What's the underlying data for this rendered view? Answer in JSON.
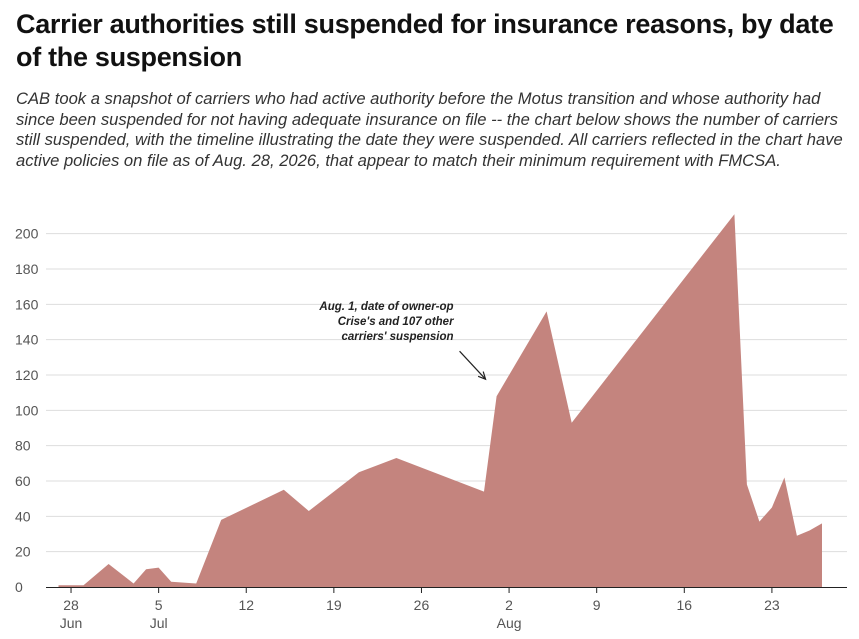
{
  "chart_data": {
    "type": "area",
    "title": "Carrier authorities still suspended for insurance reasons, by date of the suspension",
    "subtitle": "CAB took a snapshot of carriers who had active authority before the Motus transition and whose authority had since been suspended for not having adequate insurance on file -- the chart below shows the number of carriers still suspended, with the timeline illustrating the date they were suspended. All carriers reflected in the chart have active policies on file as of Aug. 28, 2026, that appear to match their minimum requirement with FMCSA.",
    "xlabel": "",
    "ylabel": "",
    "ylim": [
      0,
      210
    ],
    "yticks": [
      0,
      20,
      40,
      60,
      80,
      100,
      120,
      140,
      160,
      180,
      200
    ],
    "xlim": [
      "2026-06-26",
      "2026-08-29"
    ],
    "xticks": [
      {
        "date": "2026-06-28",
        "day": "28",
        "month": "Jun"
      },
      {
        "date": "2026-07-05",
        "day": "5",
        "month": "Jul"
      },
      {
        "date": "2026-07-12",
        "day": "12",
        "month": ""
      },
      {
        "date": "2026-07-19",
        "day": "19",
        "month": ""
      },
      {
        "date": "2026-07-26",
        "day": "26",
        "month": ""
      },
      {
        "date": "2026-08-02",
        "day": "2",
        "month": "Aug"
      },
      {
        "date": "2026-08-09",
        "day": "9",
        "month": ""
      },
      {
        "date": "2026-08-16",
        "day": "16",
        "month": ""
      },
      {
        "date": "2026-08-23",
        "day": "23",
        "month": ""
      }
    ],
    "grid": true,
    "color": "#c4847e",
    "series": [
      {
        "name": "",
        "points": [
          {
            "x": "2026-06-27",
            "y": 1
          },
          {
            "x": "2026-06-29",
            "y": 1
          },
          {
            "x": "2026-07-01",
            "y": 13
          },
          {
            "x": "2026-07-03",
            "y": 2
          },
          {
            "x": "2026-07-04",
            "y": 10
          },
          {
            "x": "2026-07-05",
            "y": 11
          },
          {
            "x": "2026-07-06",
            "y": 3
          },
          {
            "x": "2026-07-08",
            "y": 2
          },
          {
            "x": "2026-07-10",
            "y": 38
          },
          {
            "x": "2026-07-15",
            "y": 55
          },
          {
            "x": "2026-07-17",
            "y": 43
          },
          {
            "x": "2026-07-21",
            "y": 65
          },
          {
            "x": "2026-07-24",
            "y": 73
          },
          {
            "x": "2026-07-31",
            "y": 54
          },
          {
            "x": "2026-08-01",
            "y": 108
          },
          {
            "x": "2026-08-05",
            "y": 156
          },
          {
            "x": "2026-08-07",
            "y": 93
          },
          {
            "x": "2026-08-20",
            "y": 211
          },
          {
            "x": "2026-08-21",
            "y": 58
          },
          {
            "x": "2026-08-22",
            "y": 37
          },
          {
            "x": "2026-08-23",
            "y": 45
          },
          {
            "x": "2026-08-24",
            "y": 62
          },
          {
            "x": "2026-08-25",
            "y": 29
          },
          {
            "x": "2026-08-26",
            "y": 32
          },
          {
            "x": "2026-08-27",
            "y": 36
          }
        ]
      }
    ],
    "annotations": [
      {
        "lines": [
          "Aug. 1, date of owner-op",
          "Crise's and 107 other",
          "carriers' suspension"
        ],
        "x": "2026-08-01",
        "y": 108
      }
    ]
  }
}
